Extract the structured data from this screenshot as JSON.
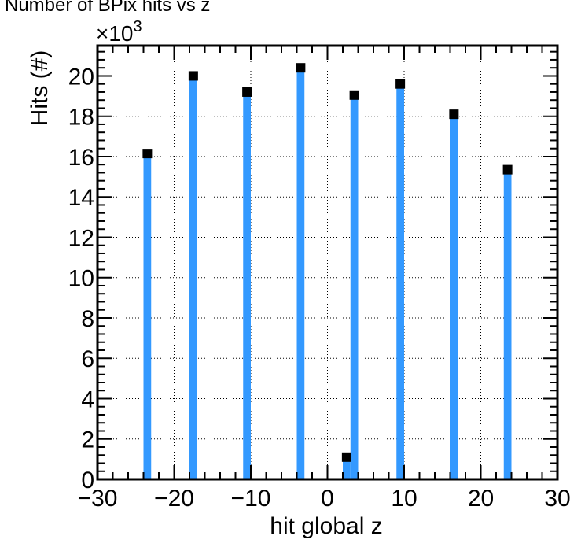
{
  "chart_data": {
    "type": "bar",
    "title": "Number of BPix hits vs z",
    "xlabel": "hit global z",
    "ylabel": "Hits (#)",
    "y_multiplier_base": "×10",
    "y_multiplier_exp": "3",
    "xlim": [
      -30,
      30
    ],
    "ylim": [
      0,
      21.5
    ],
    "x_ticks": [
      -30,
      -20,
      -10,
      0,
      10,
      20,
      30
    ],
    "x_tick_labels": [
      "−30",
      "−20",
      "−10",
      "0",
      "10",
      "20",
      "30"
    ],
    "y_ticks": [
      0,
      2,
      4,
      6,
      8,
      10,
      12,
      14,
      16,
      18,
      20
    ],
    "y_tick_labels": [
      "0",
      "2",
      "4",
      "6",
      "8",
      "10",
      "12",
      "14",
      "16",
      "18",
      "20"
    ],
    "grid": true,
    "colors": {
      "bar": "#3399ff",
      "marker": "#000000",
      "frame": "#000000",
      "grid": "#000000"
    },
    "series": [
      {
        "x": [
          -23.5,
          -17.5,
          -10.5,
          -3.5,
          2.5,
          3.5,
          9.5,
          16.5,
          23.5
        ],
        "values": [
          16.15,
          20.0,
          19.2,
          20.4,
          1.1,
          19.05,
          19.6,
          18.1,
          15.35
        ]
      }
    ]
  }
}
